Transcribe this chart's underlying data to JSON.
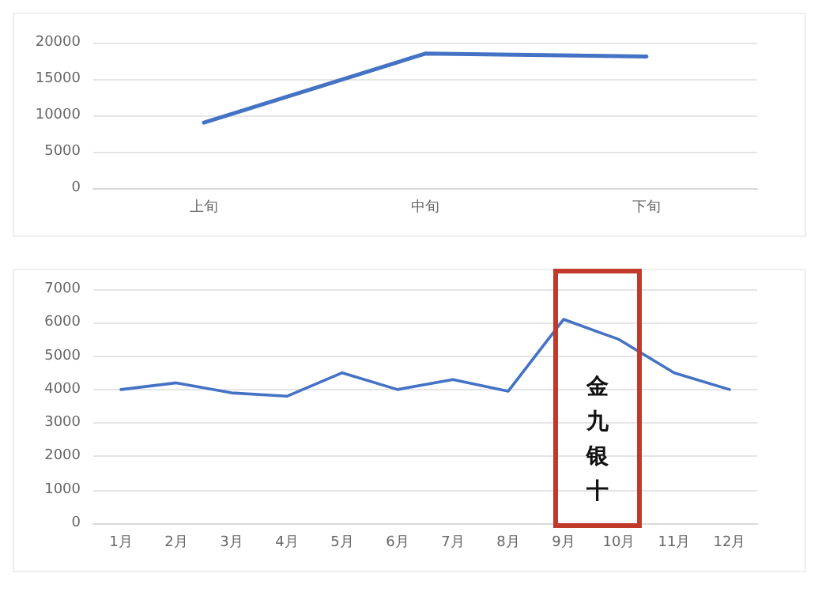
{
  "chart_data": [
    {
      "type": "line",
      "categories": [
        "上旬",
        "中旬",
        "下旬"
      ],
      "series": [
        {
          "color": "#4472c4",
          "values": [
            9000,
            18500,
            18100
          ]
        }
      ],
      "ylim": [
        0,
        20000
      ],
      "yticks": [
        0,
        5000,
        10000,
        15000,
        20000
      ],
      "grid": "y",
      "marker": "none",
      "line_style": "solid"
    },
    {
      "type": "line",
      "categories": [
        "1月",
        "2月",
        "3月",
        "4月",
        "5月",
        "6月",
        "7月",
        "8月",
        "9月",
        "10月",
        "11月",
        "12月"
      ],
      "series": [
        {
          "color": "#4472c4",
          "values": [
            4000,
            4200,
            3900,
            3800,
            4500,
            4000,
            4300,
            3950,
            6100,
            5500,
            4500,
            4000
          ]
        }
      ],
      "ylim": [
        0,
        7000
      ],
      "yticks": [
        0,
        1000,
        2000,
        3000,
        4000,
        5000,
        6000,
        7000
      ],
      "grid": "y",
      "marker": "none",
      "line_style": "solid",
      "annotations": [
        "金九银十"
      ]
    }
  ]
}
